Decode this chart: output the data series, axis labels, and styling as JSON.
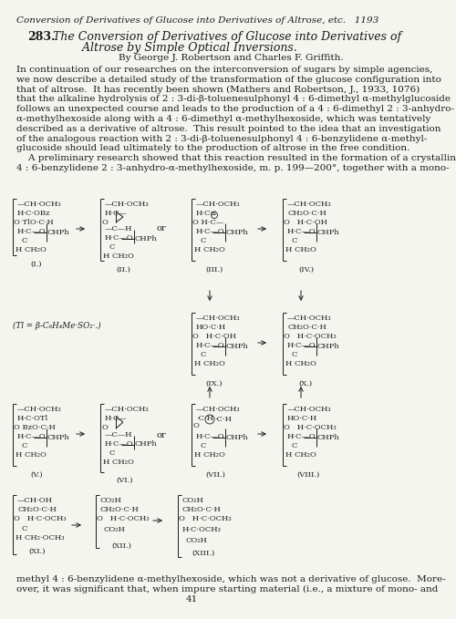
{
  "bg_color": "#f5f5f0",
  "text_color": "#1a1a1a",
  "figsize": [
    5.0,
    6.79
  ],
  "dpi": 100,
  "page_header": "Conversion of Derivatives of Glucose into Derivatives of Altrose, etc.   1193",
  "title_bold": "283.",
  "title_italic": "  The Conversion of Derivatives of Glucose into Derivatives of\n         Altrose by Simple Optical Inversions.",
  "author": "By George J. Robertson and Charles F. Griffith.",
  "body_lines": [
    "In continuation of our researches on the interconversion of sugars by simple agencies,",
    "we now describe a detailed study of the transformation of the glucose configuration into",
    "that of altrose.  It has recently been shown (Mathers and Robertson, J., 1933, 1076)",
    "that the alkaline hydrolysis of 2 : 3-di-β-toluenesulphonyl 4 : 6-dimethyl α-methylglucoside",
    "follows an unexpected course and leads to the production of a 4 : 6-dimethyl 2 : 3-anhydro-",
    "α-methylhexoside along with a 4 : 6-dimethyl α-methylhexoside, which was tentatively",
    "described as a derivative of altrose.  This result pointed to the idea that an investigation",
    "of the analogous reaction with 2 : 3-di-β-toluenesulphonyl 4 : 6-benzylidene α-methyl-",
    "glucoside should lead ultimately to the production of altrose in the free condition.",
    "    A preliminary research showed that this reaction resulted in the formation of a crystalline",
    "4 : 6-benzylidene 2 : 3-anhydro-α-methylhexoside, m. p. 199—200°, together with a mono-"
  ],
  "footer_lines": [
    "methyl 4 : 6-benzylidene α-methylhexoside, which was not a derivative of glucose.  More-",
    "over, it was significant that, when impure starting material (i.e., a mixture of mono- and",
    "41"
  ]
}
